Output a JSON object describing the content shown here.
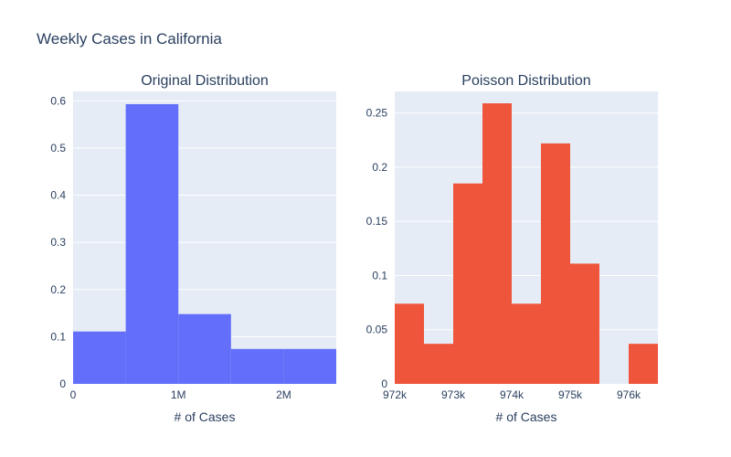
{
  "figure": {
    "title": "Weekly Cases in California"
  },
  "chart_data": [
    {
      "type": "bar",
      "title": "Original Distribution",
      "xlabel": "# of Cases",
      "ylabel": "",
      "color": "#636efa",
      "xlim": [
        0,
        2500000
      ],
      "ylim": [
        0,
        0.62
      ],
      "xticks": [
        {
          "value": 0,
          "label": "0"
        },
        {
          "value": 1000000,
          "label": "1M"
        },
        {
          "value": 2000000,
          "label": "2M"
        }
      ],
      "yticks": [
        {
          "value": 0,
          "label": "0"
        },
        {
          "value": 0.1,
          "label": "0.1"
        },
        {
          "value": 0.2,
          "label": "0.2"
        },
        {
          "value": 0.3,
          "label": "0.3"
        },
        {
          "value": 0.4,
          "label": "0.4"
        },
        {
          "value": 0.5,
          "label": "0.5"
        },
        {
          "value": 0.6,
          "label": "0.6"
        }
      ],
      "bins": [
        {
          "x0": 0,
          "x1": 500000,
          "value": 0.111
        },
        {
          "x0": 500000,
          "x1": 1000000,
          "value": 0.593
        },
        {
          "x0": 1000000,
          "x1": 1500000,
          "value": 0.148
        },
        {
          "x0": 1500000,
          "x1": 2000000,
          "value": 0.074
        },
        {
          "x0": 2000000,
          "x1": 2500000,
          "value": 0.074
        }
      ]
    },
    {
      "type": "bar",
      "title": "Poisson Distribution",
      "xlabel": "# of Cases",
      "ylabel": "",
      "color": "#ef553b",
      "xlim": [
        972000,
        976500
      ],
      "ylim": [
        0,
        0.27
      ],
      "xticks": [
        {
          "value": 972000,
          "label": "972k"
        },
        {
          "value": 973000,
          "label": "973k"
        },
        {
          "value": 974000,
          "label": "974k"
        },
        {
          "value": 975000,
          "label": "975k"
        },
        {
          "value": 976000,
          "label": "976k"
        }
      ],
      "yticks": [
        {
          "value": 0,
          "label": "0"
        },
        {
          "value": 0.05,
          "label": "0.05"
        },
        {
          "value": 0.1,
          "label": "0.1"
        },
        {
          "value": 0.15,
          "label": "0.15"
        },
        {
          "value": 0.2,
          "label": "0.2"
        },
        {
          "value": 0.25,
          "label": "0.25"
        }
      ],
      "bins": [
        {
          "x0": 972000,
          "x1": 972500,
          "value": 0.074
        },
        {
          "x0": 972500,
          "x1": 973000,
          "value": 0.037
        },
        {
          "x0": 973000,
          "x1": 973500,
          "value": 0.185
        },
        {
          "x0": 973500,
          "x1": 974000,
          "value": 0.259
        },
        {
          "x0": 974000,
          "x1": 974500,
          "value": 0.074
        },
        {
          "x0": 974500,
          "x1": 975000,
          "value": 0.222
        },
        {
          "x0": 975000,
          "x1": 975500,
          "value": 0.111
        },
        {
          "x0": 975500,
          "x1": 976000,
          "value": 0
        },
        {
          "x0": 976000,
          "x1": 976500,
          "value": 0.037
        }
      ]
    }
  ]
}
